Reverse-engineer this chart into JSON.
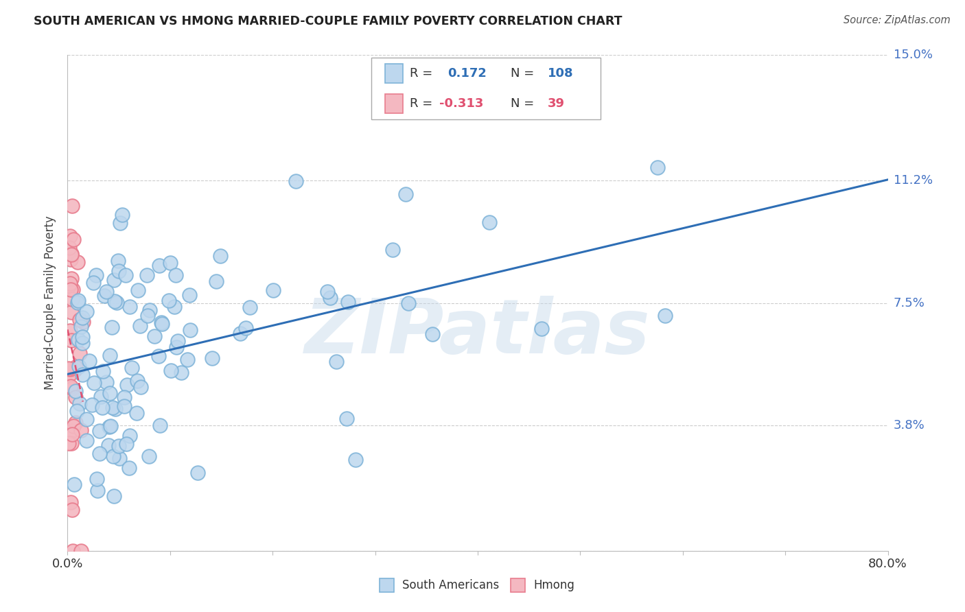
{
  "title": "SOUTH AMERICAN VS HMONG MARRIED-COUPLE FAMILY POVERTY CORRELATION CHART",
  "source": "Source: ZipAtlas.com",
  "ylabel": "Married-Couple Family Poverty",
  "watermark": "ZIPatlas",
  "r_south_american": 0.172,
  "n_south_american": 108,
  "r_hmong": -0.313,
  "n_hmong": 39,
  "xlim": [
    0.0,
    0.8
  ],
  "ylim": [
    0.0,
    0.15
  ],
  "yticks": [
    0.0,
    0.038,
    0.075,
    0.112,
    0.15
  ],
  "ytick_labels": [
    "",
    "3.8%",
    "7.5%",
    "11.2%",
    "15.0%"
  ],
  "legend_blue_label": "South Americans",
  "legend_pink_label": "Hmong",
  "blue_scatter_face": "#bdd7ee",
  "blue_scatter_edge": "#7eb3d8",
  "pink_scatter_face": "#f4b8c1",
  "pink_scatter_edge": "#e87d8e",
  "blue_line_color": "#2e6eb5",
  "pink_line_color": "#e05070",
  "background_color": "#ffffff",
  "grid_color": "#cccccc",
  "right_label_color": "#4472c4",
  "title_color": "#222222",
  "source_color": "#555555",
  "seed": 7
}
